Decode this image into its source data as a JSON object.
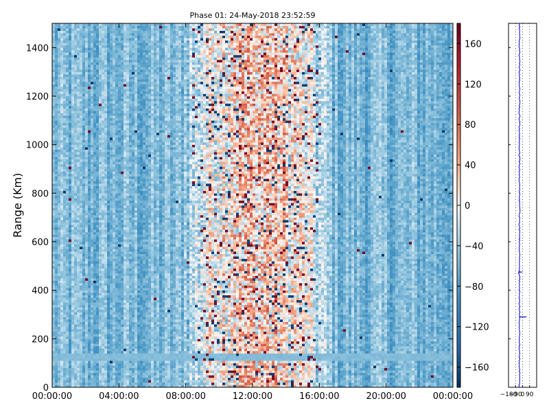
{
  "chart_data": {
    "type": "heatmap",
    "title": "Phase 01: 24-May-2018 23:52:59",
    "xlabel": "",
    "ylabel": "Range (Km)",
    "x_ticks": [
      "00:00:00",
      "04:00:00",
      "08:00:00",
      "12:00:00",
      "16:00:00",
      "20:00:00",
      "00:00:00"
    ],
    "y_ticks": [
      0,
      200,
      400,
      600,
      800,
      1000,
      1200,
      1400
    ],
    "ylim": [
      0,
      1500
    ],
    "xlim_hours": [
      0,
      24
    ],
    "colorbar": {
      "colormap": "RdBu_r",
      "range": [
        -180,
        180
      ],
      "ticks": [
        -160,
        -120,
        -80,
        -40,
        0,
        40,
        80,
        120,
        160
      ],
      "tick_labels": [
        "−160",
        "−120",
        "−80",
        "−40",
        "0",
        "40",
        "80",
        "120",
        "160"
      ]
    },
    "profile_panel": {
      "type": "line",
      "xlim": [
        -180,
        180
      ],
      "x_ticks": [
        -180,
        -90,
        0,
        90
      ],
      "x_tick_labels": [
        "−180",
        "−90",
        "0",
        "90"
      ],
      "ylim": [
        0,
        1500
      ],
      "grid": true
    },
    "field_description": {
      "background_phase_deg": -60,
      "enhanced_window_hours": [
        8.5,
        16
      ],
      "enhanced_phase_peak_deg": 30,
      "low_band_range_km": [
        110,
        140
      ]
    }
  },
  "colors": {
    "dark_red": "#67001f",
    "red": "#d6604d",
    "light_red": "#f4a582",
    "neutral": "#f7f7f7",
    "light_blue": "#92c5de",
    "blue": "#4393c3",
    "dark_blue": "#053061",
    "profile_line": "#0000cc"
  }
}
